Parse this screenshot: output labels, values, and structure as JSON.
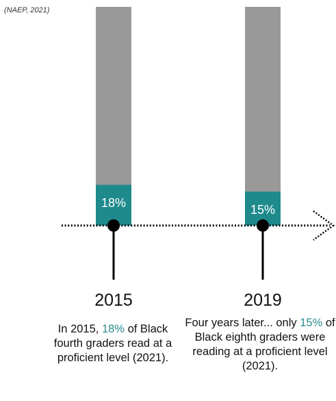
{
  "source_note": "(NAEP, 2021)",
  "colors": {
    "bar_background": "#999999",
    "bar_fill": "#1e8a8c",
    "highlight_text": "#2a8a8f",
    "axis": "#000000"
  },
  "chart_data": {
    "type": "bar",
    "categories": [
      "2015",
      "2019"
    ],
    "values": [
      18,
      15
    ],
    "value_labels": [
      "18%",
      "15%"
    ],
    "unit": "%",
    "ylim": [
      0,
      100
    ],
    "grid": false,
    "legend": "none"
  },
  "captions": [
    {
      "before": "In 2015, ",
      "highlight": "18%",
      "after": " of Black fourth graders read at a proficient level (2021)."
    },
    {
      "before": "Four years later... only ",
      "highlight": "15%",
      "after": " of Black eighth graders were reading at a proficient level (2021)."
    }
  ]
}
